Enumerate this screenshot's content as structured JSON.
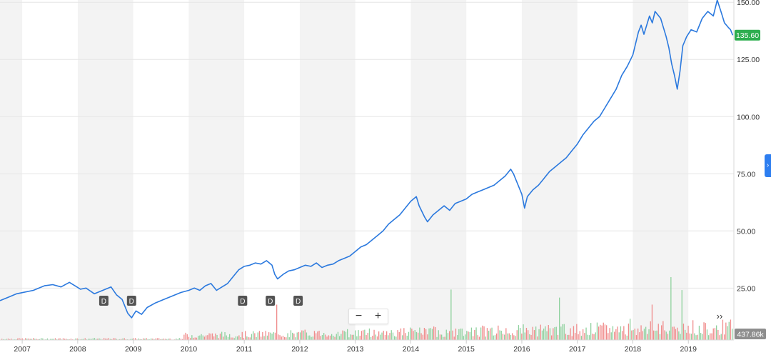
{
  "chart_data": {
    "type": "line",
    "x_labels": [
      "2007",
      "2008",
      "2009",
      "2010",
      "2011",
      "2012",
      "2013",
      "2014",
      "2015",
      "2016",
      "2017",
      "2018",
      "2019"
    ],
    "y_ticks": [
      "150.00",
      "125.00",
      "100.00",
      "75.00",
      "50.00",
      "25.00"
    ],
    "y_tick_values": [
      150,
      125,
      100,
      75,
      50,
      25
    ],
    "ylim": [
      2.3,
      151
    ],
    "xlim": [
      2006.6,
      2019.82
    ],
    "current_price": 135.6,
    "current_price_label": "135.60",
    "volume_label": "437.86k",
    "dividend_markers": [
      {
        "label": "D",
        "x": 2008.47
      },
      {
        "label": "D",
        "x": 2008.97
      },
      {
        "label": "D",
        "x": 2010.97
      },
      {
        "label": "D",
        "x": 2011.47
      },
      {
        "label": "D",
        "x": 2011.97
      }
    ],
    "price_series": [
      [
        2006.6,
        19.5
      ],
      [
        2006.75,
        21
      ],
      [
        2006.9,
        22.5
      ],
      [
        2007.0,
        23
      ],
      [
        2007.2,
        24
      ],
      [
        2007.4,
        26
      ],
      [
        2007.55,
        26.5
      ],
      [
        2007.7,
        25.5
      ],
      [
        2007.85,
        27.5
      ],
      [
        2007.95,
        26
      ],
      [
        2008.05,
        24.5
      ],
      [
        2008.15,
        25
      ],
      [
        2008.3,
        22.5
      ],
      [
        2008.45,
        24
      ],
      [
        2008.6,
        25.5
      ],
      [
        2008.7,
        22
      ],
      [
        2008.8,
        20
      ],
      [
        2008.9,
        14
      ],
      [
        2008.97,
        12
      ],
      [
        2009.05,
        15
      ],
      [
        2009.15,
        13.5
      ],
      [
        2009.25,
        16.5
      ],
      [
        2009.4,
        18.5
      ],
      [
        2009.55,
        20
      ],
      [
        2009.7,
        21.5
      ],
      [
        2009.85,
        23
      ],
      [
        2010.0,
        24
      ],
      [
        2010.1,
        25
      ],
      [
        2010.2,
        24
      ],
      [
        2010.3,
        26
      ],
      [
        2010.4,
        27
      ],
      [
        2010.5,
        24
      ],
      [
        2010.6,
        25.5
      ],
      [
        2010.7,
        27
      ],
      [
        2010.8,
        30
      ],
      [
        2010.9,
        33
      ],
      [
        2011.0,
        34.5
      ],
      [
        2011.1,
        35
      ],
      [
        2011.2,
        36
      ],
      [
        2011.3,
        35.5
      ],
      [
        2011.4,
        37
      ],
      [
        2011.5,
        35
      ],
      [
        2011.55,
        31
      ],
      [
        2011.6,
        29
      ],
      [
        2011.7,
        31
      ],
      [
        2011.8,
        32.5
      ],
      [
        2011.9,
        33
      ],
      [
        2012.0,
        34
      ],
      [
        2012.1,
        35
      ],
      [
        2012.2,
        34.5
      ],
      [
        2012.3,
        36
      ],
      [
        2012.4,
        34
      ],
      [
        2012.5,
        35
      ],
      [
        2012.6,
        35.5
      ],
      [
        2012.7,
        37
      ],
      [
        2012.8,
        38
      ],
      [
        2012.9,
        39
      ],
      [
        2013.0,
        41
      ],
      [
        2013.1,
        43
      ],
      [
        2013.2,
        44
      ],
      [
        2013.3,
        46
      ],
      [
        2013.4,
        48
      ],
      [
        2013.5,
        50
      ],
      [
        2013.6,
        53
      ],
      [
        2013.7,
        55
      ],
      [
        2013.8,
        57
      ],
      [
        2013.9,
        60
      ],
      [
        2014.0,
        63
      ],
      [
        2014.1,
        65
      ],
      [
        2014.15,
        61
      ],
      [
        2014.25,
        56
      ],
      [
        2014.3,
        54
      ],
      [
        2014.4,
        57
      ],
      [
        2014.5,
        59
      ],
      [
        2014.6,
        61
      ],
      [
        2014.7,
        59
      ],
      [
        2014.8,
        62
      ],
      [
        2014.9,
        63
      ],
      [
        2015.0,
        64
      ],
      [
        2015.1,
        66
      ],
      [
        2015.2,
        67
      ],
      [
        2015.3,
        68
      ],
      [
        2015.4,
        69
      ],
      [
        2015.5,
        70
      ],
      [
        2015.6,
        72
      ],
      [
        2015.7,
        74
      ],
      [
        2015.8,
        77
      ],
      [
        2015.85,
        75
      ],
      [
        2015.9,
        72
      ],
      [
        2016.0,
        66
      ],
      [
        2016.05,
        60
      ],
      [
        2016.1,
        65
      ],
      [
        2016.2,
        68
      ],
      [
        2016.3,
        70
      ],
      [
        2016.4,
        73
      ],
      [
        2016.5,
        76
      ],
      [
        2016.6,
        78
      ],
      [
        2016.7,
        80
      ],
      [
        2016.8,
        82
      ],
      [
        2016.9,
        85
      ],
      [
        2017.0,
        88
      ],
      [
        2017.1,
        92
      ],
      [
        2017.2,
        95
      ],
      [
        2017.3,
        98
      ],
      [
        2017.4,
        100
      ],
      [
        2017.5,
        104
      ],
      [
        2017.6,
        108
      ],
      [
        2017.7,
        112
      ],
      [
        2017.8,
        118
      ],
      [
        2017.9,
        122
      ],
      [
        2018.0,
        127
      ],
      [
        2018.05,
        132
      ],
      [
        2018.1,
        137
      ],
      [
        2018.15,
        140
      ],
      [
        2018.2,
        136
      ],
      [
        2018.3,
        144
      ],
      [
        2018.35,
        141
      ],
      [
        2018.4,
        146
      ],
      [
        2018.5,
        143
      ],
      [
        2018.6,
        135
      ],
      [
        2018.65,
        130
      ],
      [
        2018.7,
        123
      ],
      [
        2018.75,
        118
      ],
      [
        2018.8,
        112
      ],
      [
        2018.85,
        120
      ],
      [
        2018.9,
        131
      ],
      [
        2018.97,
        135
      ],
      [
        2019.05,
        138
      ],
      [
        2019.15,
        137
      ],
      [
        2019.25,
        143
      ],
      [
        2019.35,
        146
      ],
      [
        2019.45,
        144
      ],
      [
        2019.52,
        151
      ],
      [
        2019.6,
        145
      ],
      [
        2019.65,
        141
      ],
      [
        2019.72,
        139
      ],
      [
        2019.76,
        138
      ],
      [
        2019.8,
        135.6
      ]
    ]
  },
  "controls": {
    "zoom_out": "−",
    "zoom_in": "+",
    "scroll_right": "››",
    "side_tab": "›"
  },
  "colors": {
    "line": "#2b79de",
    "band_shade": "#f3f3f3",
    "price_badge": "#2dae4f",
    "volume_badge": "#8e8e8e",
    "volume_up": "#8fd19e",
    "volume_down": "#f08c8c",
    "marker": "#535353"
  }
}
